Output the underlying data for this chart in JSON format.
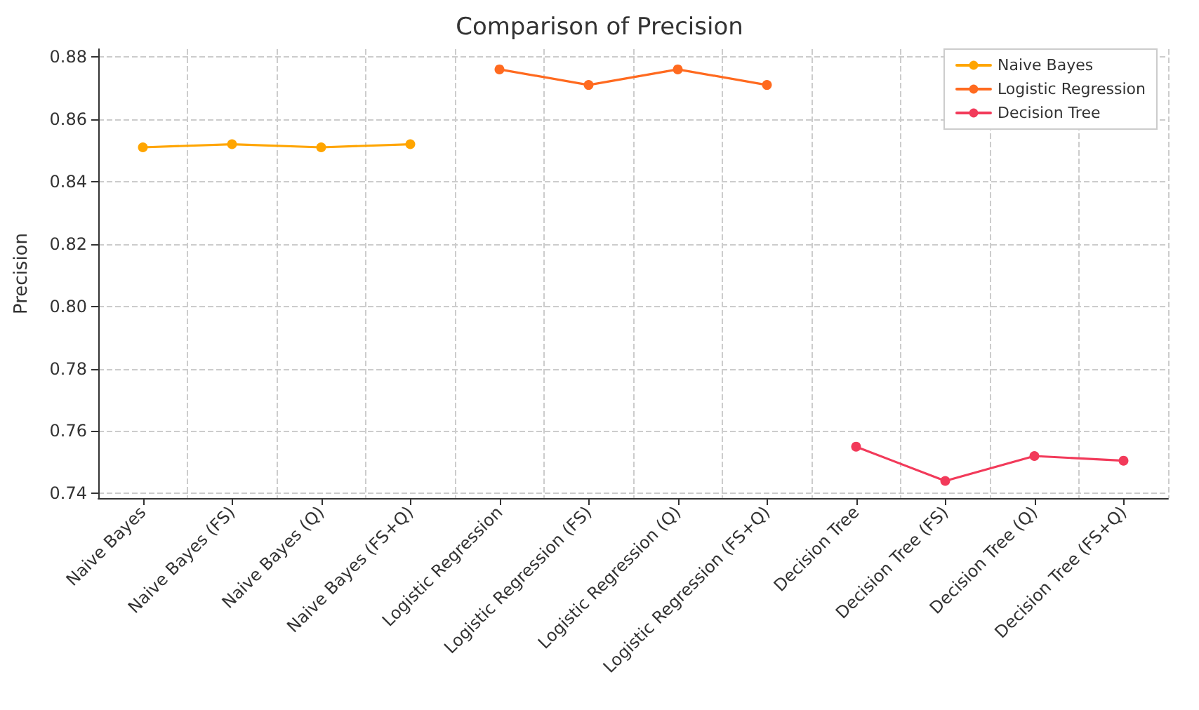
{
  "chart_data": {
    "type": "line",
    "title": "Comparison of Precision",
    "ylabel": "Precision",
    "categories": [
      "Naive Bayes",
      "Naive Bayes (FS)",
      "Naive Bayes (Q)",
      "Naive Bayes (FS+Q)",
      "Logistic Regression",
      "Logistic Regression (FS)",
      "Logistic Regression (Q)",
      "Logistic Regression (FS+Q)",
      "Decision Tree",
      "Decision Tree (FS)",
      "Decision Tree (Q)",
      "Decision Tree (FS+Q)"
    ],
    "series": [
      {
        "name": "Naive Bayes",
        "color": "#ffa500",
        "values": [
          0.851,
          0.852,
          0.851,
          0.852,
          null,
          null,
          null,
          null,
          null,
          null,
          null,
          null
        ]
      },
      {
        "name": "Logistic Regression",
        "color": "#ff6a1f",
        "values": [
          null,
          null,
          null,
          null,
          0.876,
          0.871,
          0.876,
          0.871,
          null,
          null,
          null,
          null
        ]
      },
      {
        "name": "Decision Tree",
        "color": "#f23a5a",
        "values": [
          null,
          null,
          null,
          null,
          null,
          null,
          null,
          null,
          0.755,
          0.744,
          0.752,
          0.7505
        ]
      }
    ],
    "ylim": [
      0.7385,
      0.8825
    ],
    "yticks": [
      0.74,
      0.76,
      0.78,
      {
        "value": 0.8,
        "label": "0.80"
      },
      0.82,
      0.84,
      0.86,
      0.88
    ],
    "grid": true,
    "legend": "top right",
    "marker": "circle",
    "line_style": "solid"
  }
}
